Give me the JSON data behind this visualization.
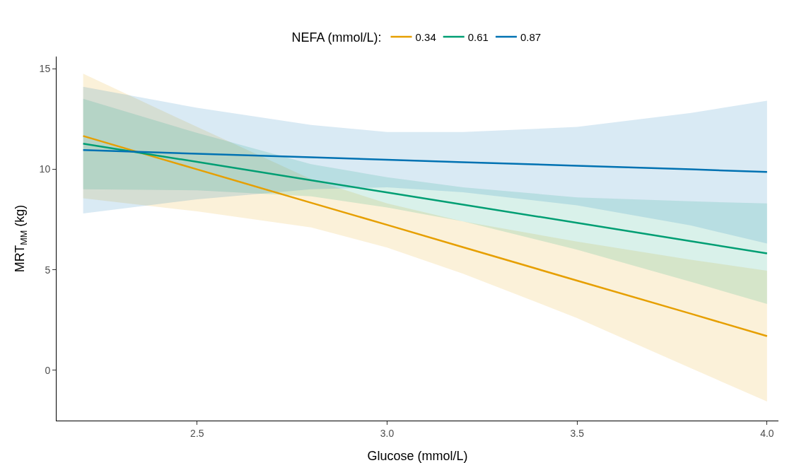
{
  "chart_data": {
    "type": "line",
    "xlabel": "Glucose (mmol/L)",
    "ylabel": "MRT$_{MM}$ (kg)",
    "legend_title": "NEFA (mmol/L):",
    "legend": "top",
    "grid": false,
    "marker": "none",
    "line_style": "solid",
    "x": [
      2.2,
      2.5,
      2.8,
      3.0,
      3.2,
      3.5,
      3.8,
      4.0
    ],
    "xlim": [
      2.13,
      4.03
    ],
    "xticks": [
      {
        "value": 2.5,
        "label": "2.5"
      },
      {
        "value": 3,
        "label": "3.0"
      },
      {
        "value": 3.5,
        "label": "3.5"
      },
      {
        "value": 4,
        "label": "4.0"
      }
    ],
    "ylim": [
      -2.5,
      15.6
    ],
    "yticks": [
      0,
      5,
      10,
      15
    ],
    "series": [
      {
        "name": "0.34",
        "color": "#e69f00",
        "values": [
          11.65,
          9.99,
          8.33,
          7.23,
          6.12,
          4.46,
          2.81,
          1.7
        ],
        "lower": [
          8.55,
          7.9,
          7.1,
          6.1,
          4.8,
          2.6,
          0.1,
          -1.55
        ],
        "upper": [
          14.75,
          12.1,
          9.5,
          8.3,
          7.4,
          6.4,
          5.5,
          4.95
        ]
      },
      {
        "name": "0.61",
        "color": "#009e73",
        "values": [
          11.27,
          10.36,
          9.45,
          8.84,
          8.24,
          7.33,
          6.42,
          5.81
        ],
        "lower": [
          9.0,
          8.95,
          8.65,
          8.1,
          7.4,
          6.0,
          4.4,
          3.3
        ],
        "upper": [
          13.5,
          11.8,
          10.25,
          9.6,
          9.1,
          8.6,
          8.4,
          8.3
        ]
      },
      {
        "name": "0.87",
        "color": "#0072b2",
        "values": [
          10.95,
          10.77,
          10.59,
          10.47,
          10.35,
          10.17,
          9.99,
          9.86
        ],
        "lower": [
          7.8,
          8.5,
          9.0,
          9.1,
          8.85,
          8.2,
          7.2,
          6.3
        ],
        "upper": [
          14.1,
          13.05,
          12.2,
          11.85,
          11.85,
          12.1,
          12.8,
          13.4
        ]
      }
    ]
  }
}
